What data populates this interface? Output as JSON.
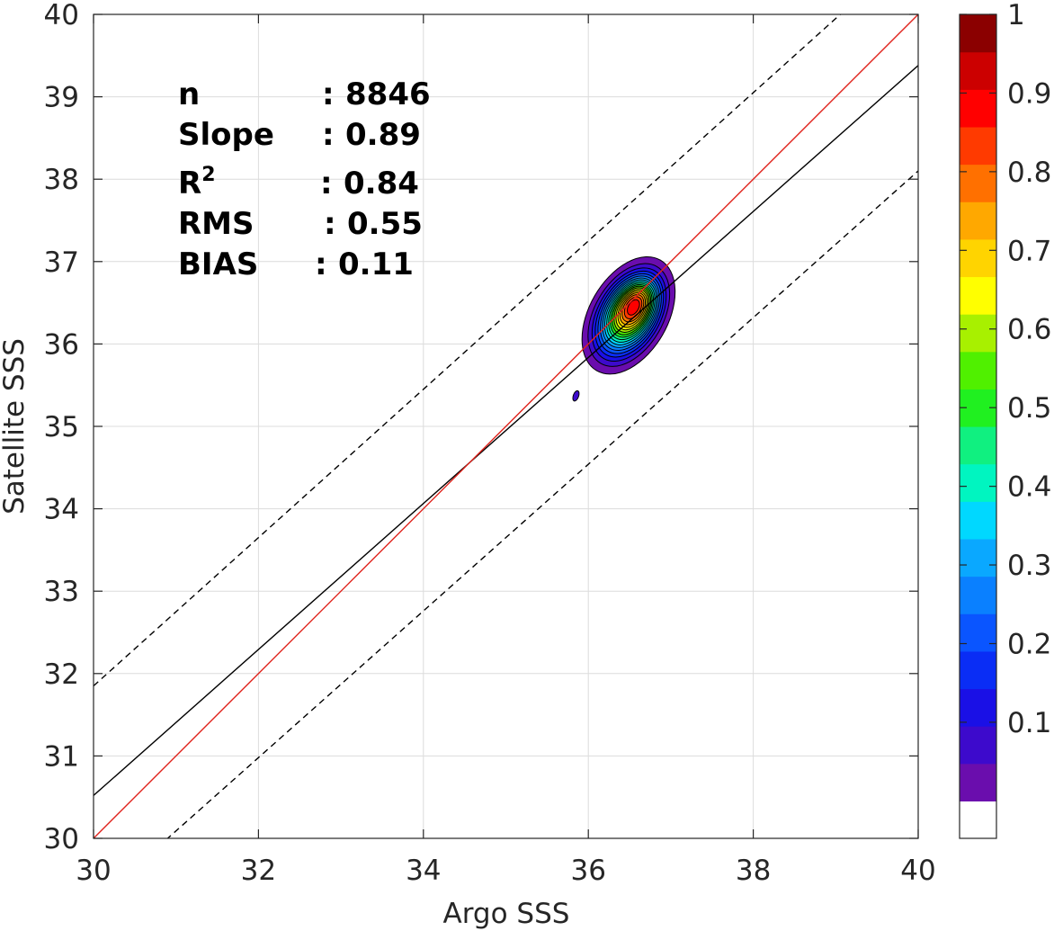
{
  "chart_data": {
    "type": "contour",
    "xlabel": "Argo SSS",
    "ylabel": "Satellite SSS",
    "xlim": [
      30,
      40
    ],
    "ylim": [
      30,
      40
    ],
    "x_ticks": [
      "30",
      "32",
      "34",
      "36",
      "38",
      "40"
    ],
    "y_ticks": [
      "30",
      "31",
      "32",
      "33",
      "34",
      "35",
      "36",
      "37",
      "38",
      "39",
      "40"
    ],
    "grid": true,
    "stats": [
      {
        "label": "n",
        "sep": ":",
        "value": "8846"
      },
      {
        "label": "Slope",
        "sep": ":",
        "value": "0.89"
      },
      {
        "label": "R",
        "sup": "2",
        "sep": ":",
        "value": "0.84"
      },
      {
        "label": "RMS",
        "sep": ":",
        "value": "0.55"
      },
      {
        "label": "BIAS",
        "sep": ":",
        "value": "0.11"
      }
    ],
    "lines": {
      "one_to_one": {
        "x": [
          30,
          40
        ],
        "y": [
          30,
          40
        ],
        "color": "#e0231c"
      },
      "regression": {
        "x": [
          30,
          40
        ],
        "y": [
          30.52,
          39.38
        ],
        "color": "#000000"
      },
      "upper_bound": {
        "x": [
          30,
          40
        ],
        "y": [
          31.85,
          40.85
        ],
        "color": "#000000",
        "dashed": true
      },
      "lower_bound": {
        "x": [
          30,
          40
        ],
        "y": [
          29.2,
          38.1
        ],
        "color": "#000000",
        "dashed": true
      }
    },
    "density": {
      "center": [
        36.55,
        36.45
      ],
      "spread": [
        0.38,
        0.62
      ],
      "rotation_deg": 30,
      "outliers": [
        {
          "x": 35.85,
          "y": 35.37
        }
      ]
    },
    "colorbar": {
      "ticks": [
        "0.1",
        "0.2",
        "0.3",
        "0.4",
        "0.5",
        "0.6",
        "0.7",
        "0.8",
        "0.9",
        "1"
      ],
      "levels": [
        0,
        0.05,
        0.1,
        0.15,
        0.2,
        0.25,
        0.3,
        0.35,
        0.4,
        0.45,
        0.5,
        0.55,
        0.6,
        0.65,
        0.7,
        0.75,
        0.8,
        0.85,
        0.9,
        0.95,
        1.0
      ],
      "colors": [
        "#ffffff",
        "#6a0dad",
        "#3d0acc",
        "#1a10e6",
        "#0a2df5",
        "#0a55ff",
        "#0a80ff",
        "#0aa8ff",
        "#00d8ff",
        "#00f5c0",
        "#10f080",
        "#20f020",
        "#50f000",
        "#a8f000",
        "#ffff00",
        "#ffd400",
        "#ffa800",
        "#ff7000",
        "#ff3a00",
        "#ff0000",
        "#cc0000",
        "#8b0000"
      ]
    }
  }
}
